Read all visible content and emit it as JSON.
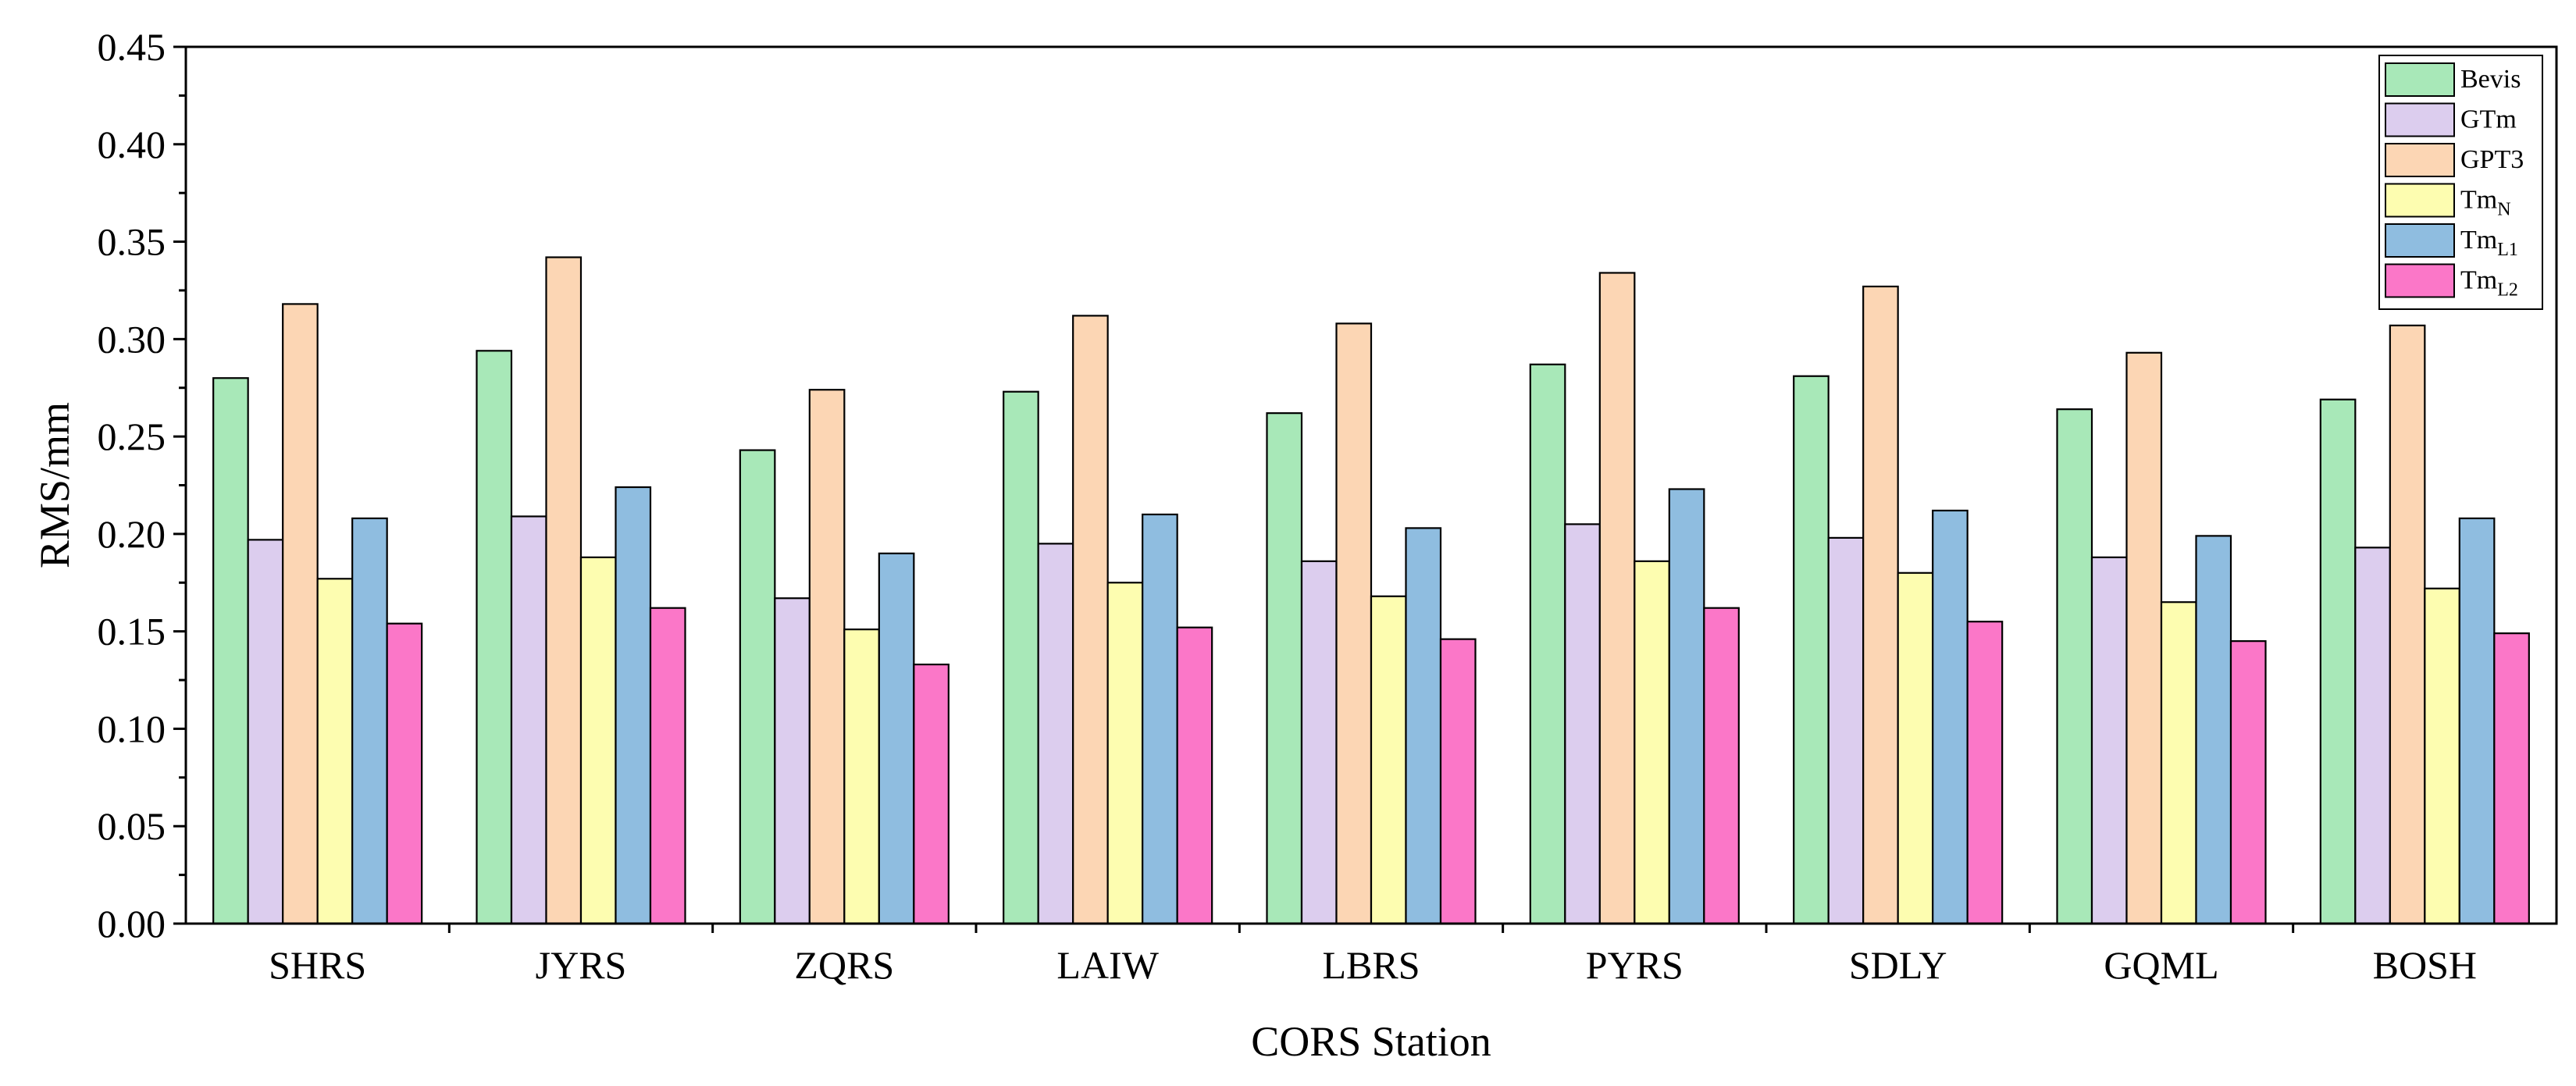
{
  "chart_data": {
    "type": "bar",
    "xlabel": "CORS Station",
    "ylabel": "RMS/mm",
    "ylim": [
      0,
      0.45
    ],
    "y_ticks": [
      "0.00",
      "0.05",
      "0.10",
      "0.15",
      "0.20",
      "0.25",
      "0.30",
      "0.35",
      "0.40",
      "0.45"
    ],
    "grid": false,
    "legend_position": "top-right",
    "categories": [
      "SHRS",
      "JYRS",
      "ZQRS",
      "LAIW",
      "LBRS",
      "PYRS",
      "SDLY",
      "GQML",
      "BOSH"
    ],
    "series": [
      {
        "name": "Bevis",
        "name_main": "Bevis",
        "name_sub": "",
        "color": "#a8e8b8",
        "values": [
          0.28,
          0.294,
          0.243,
          0.273,
          0.262,
          0.287,
          0.281,
          0.264,
          0.269
        ]
      },
      {
        "name": "GTm",
        "name_main": "GTm",
        "name_sub": "",
        "color": "#dccdee",
        "values": [
          0.197,
          0.209,
          0.167,
          0.195,
          0.186,
          0.205,
          0.198,
          0.188,
          0.193
        ]
      },
      {
        "name": "GPT3",
        "name_main": "GPT3",
        "name_sub": "",
        "color": "#fcd6b4",
        "values": [
          0.318,
          0.342,
          0.274,
          0.312,
          0.308,
          0.334,
          0.327,
          0.293,
          0.307
        ]
      },
      {
        "name": "TmN",
        "name_main": "Tm",
        "name_sub": "N",
        "color": "#fdfdb0",
        "values": [
          0.177,
          0.188,
          0.151,
          0.175,
          0.168,
          0.186,
          0.18,
          0.165,
          0.172
        ]
      },
      {
        "name": "TmL1",
        "name_main": "Tm",
        "name_sub": "L1",
        "color": "#8fbde0",
        "values": [
          0.208,
          0.224,
          0.19,
          0.21,
          0.203,
          0.223,
          0.212,
          0.199,
          0.208
        ]
      },
      {
        "name": "TmL2",
        "name_main": "Tm",
        "name_sub": "L2",
        "color": "#fb77c8",
        "values": [
          0.154,
          0.162,
          0.133,
          0.152,
          0.146,
          0.162,
          0.155,
          0.145,
          0.149
        ]
      }
    ]
  }
}
